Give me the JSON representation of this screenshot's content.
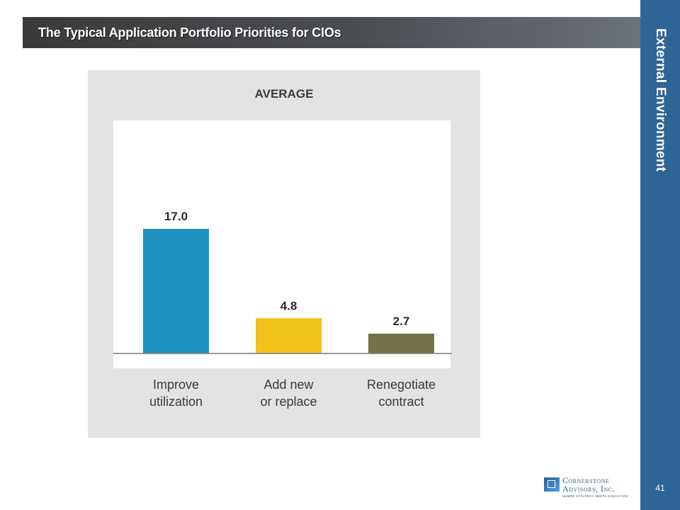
{
  "slide": {
    "title": "The Typical Application Portfolio Priorities for CIOs",
    "section_label": "External Environment",
    "page_number": "41",
    "logo": {
      "line1": "Cornerstone",
      "line2": "Advisors, Inc.",
      "tagline": "WHERE STRATEGY MEETS EXECUTION"
    },
    "colors": {
      "title_bar": "#44474b",
      "side_band": "#2f6497",
      "panel_bg": "#e3e3e3"
    }
  },
  "chart_data": {
    "type": "bar",
    "title": "AVERAGE",
    "categories": [
      [
        "Improve",
        "utilization"
      ],
      [
        "Add new",
        "or replace"
      ],
      [
        "Renegotiate",
        "contract"
      ]
    ],
    "values": [
      17.0,
      4.8,
      2.7
    ],
    "value_labels": [
      "17.0",
      "4.8",
      "2.7"
    ],
    "bar_colors": [
      "#1e93c2",
      "#f1c11c",
      "#737149"
    ],
    "ylim": [
      0,
      20
    ],
    "xlabel": "",
    "ylabel": "",
    "grid": false,
    "legend": "none"
  }
}
